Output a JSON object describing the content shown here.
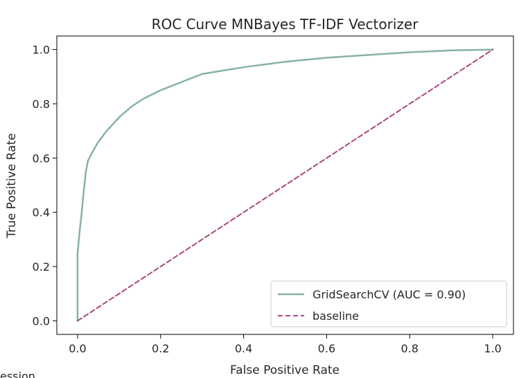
{
  "footer_fragment": "ession",
  "chart_data": {
    "type": "line",
    "title": "ROC Curve MNBayes TF-IDF Vectorizer",
    "xlabel": "False Positive Rate",
    "ylabel": "True Positive Rate",
    "xlim": [
      -0.05,
      1.05
    ],
    "ylim": [
      -0.05,
      1.05
    ],
    "xticks": [
      0.0,
      0.2,
      0.4,
      0.6,
      0.8,
      1.0
    ],
    "yticks": [
      0.0,
      0.2,
      0.4,
      0.6,
      0.8,
      1.0
    ],
    "tick_labels": [
      "0.0",
      "0.2",
      "0.4",
      "0.6",
      "0.8",
      "1.0"
    ],
    "grid": false,
    "legend_position": "lower right",
    "series": [
      {
        "name": "GridSearchCV (AUC = 0.90)",
        "color": "#86b3a1",
        "style": "solid",
        "x": [
          0.0,
          0.0,
          0.005,
          0.01,
          0.015,
          0.02,
          0.025,
          0.035,
          0.05,
          0.07,
          0.1,
          0.13,
          0.16,
          0.2,
          0.25,
          0.3,
          0.4,
          0.5,
          0.6,
          0.7,
          0.8,
          0.9,
          1.0
        ],
        "y": [
          0.0,
          0.25,
          0.33,
          0.4,
          0.48,
          0.55,
          0.59,
          0.62,
          0.66,
          0.7,
          0.75,
          0.79,
          0.82,
          0.85,
          0.88,
          0.91,
          0.935,
          0.955,
          0.97,
          0.98,
          0.99,
          0.997,
          1.0
        ]
      },
      {
        "name": "baseline",
        "color": "#a8467f",
        "style": "dashed",
        "x": [
          0.0,
          1.0
        ],
        "y": [
          0.0,
          1.0
        ]
      }
    ]
  }
}
